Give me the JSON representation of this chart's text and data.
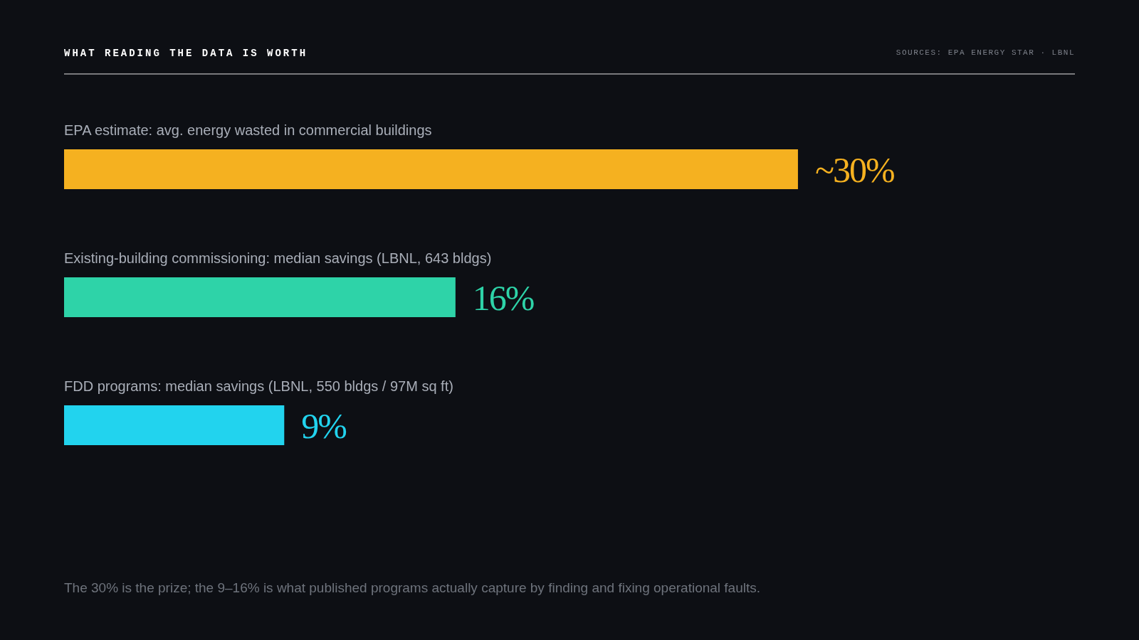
{
  "chart_data": {
    "type": "bar",
    "orientation": "horizontal",
    "title": "WHAT READING THE DATA IS WORTH",
    "categories": [
      "EPA estimate: avg. energy wasted in commercial buildings",
      "Existing-building commissioning: median savings (LBNL, 643 bldgs)",
      "FDD programs: median savings (LBNL, 550 bldgs / 97M sq ft)"
    ],
    "values": [
      30,
      16,
      9
    ],
    "colors": [
      "#f5b120",
      "#2ed3a8",
      "#22d3ee"
    ],
    "value_labels": [
      "~30%",
      "16%",
      "9%"
    ],
    "annotations": [
      "SOURCES: EPA ENERGY STAR · LBNL",
      "The 30% is the prize; the 9–16% is what published programs actually capture by finding and fixing operational faults."
    ]
  }
}
